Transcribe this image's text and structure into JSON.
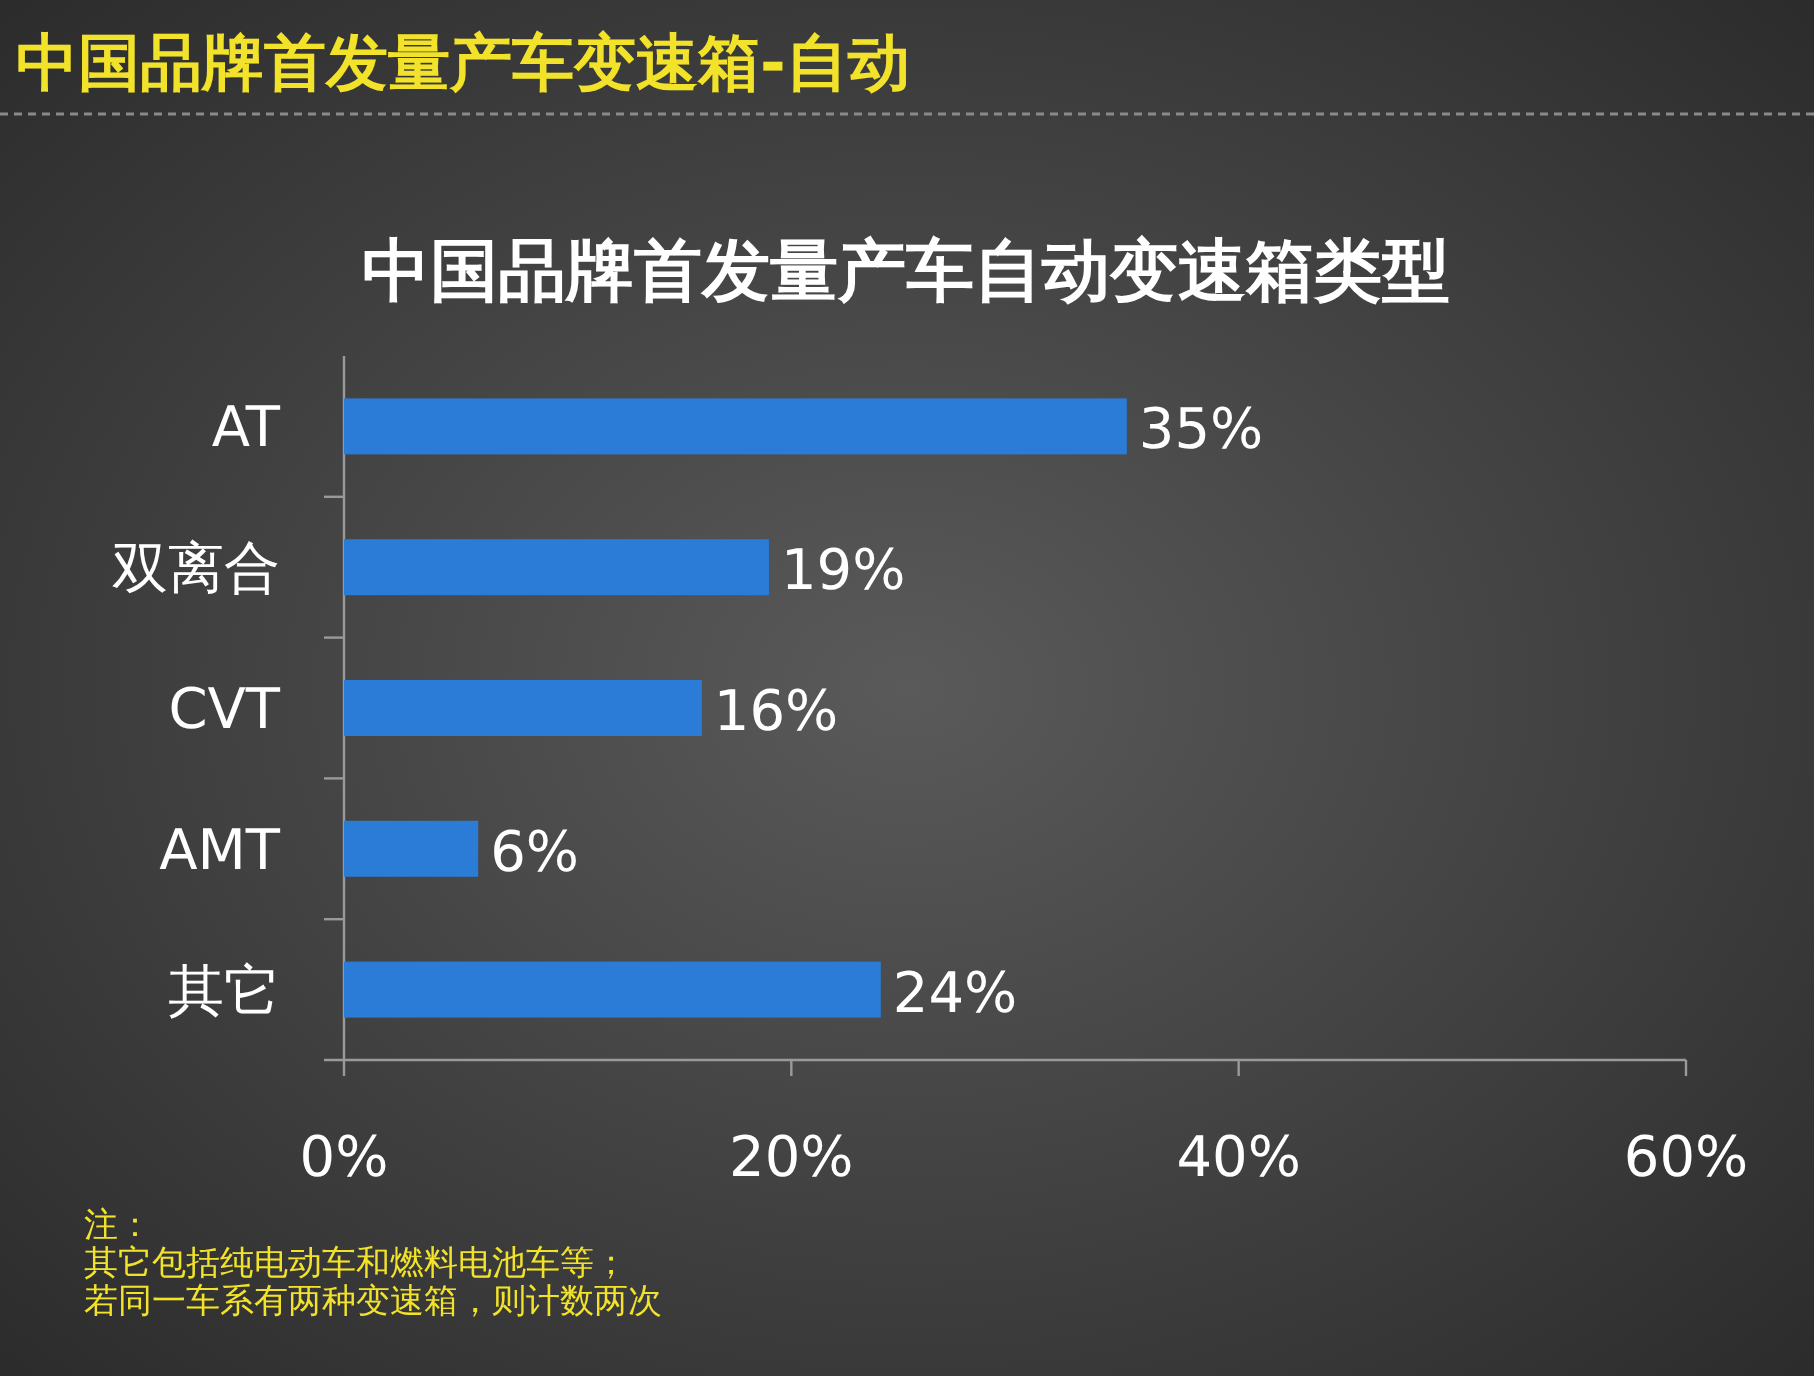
{
  "chart_data": {
    "type": "bar",
    "orientation": "horizontal",
    "title": "中国品牌首发量产车变速箱-自动",
    "subtitle": "中国品牌首发量产车自动变速箱类型",
    "categories": [
      "AT",
      "双离合",
      "CVT",
      "AMT",
      "其它"
    ],
    "values": [
      35,
      19,
      16,
      6,
      24
    ],
    "value_labels": [
      "35%",
      "19%",
      "16%",
      "6%",
      "24%"
    ],
    "color": "#2b7cd6",
    "xlim": [
      0,
      60
    ],
    "xticks": [
      {
        "value": 0,
        "label": "0%"
      },
      {
        "value": 20,
        "label": "20%"
      },
      {
        "value": 40,
        "label": "40%"
      },
      {
        "value": 60,
        "label": "60%"
      }
    ],
    "grid": false,
    "annotations": [
      "注：",
      "其它包括纯电动车和燃料电池车等；",
      "若同一车系有两种变速箱，则计数两次"
    ]
  }
}
